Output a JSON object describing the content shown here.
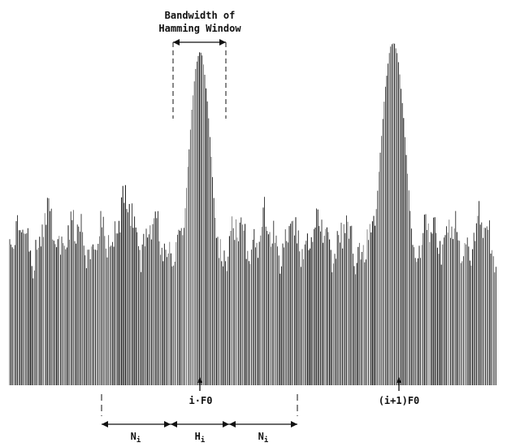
{
  "window_caption": {
    "line1": "Bandwidth of",
    "line2": "Hamming Window"
  },
  "harmonic_markers": [
    {
      "text": "i·F0"
    },
    {
      "text": "(i+1)F0"
    }
  ],
  "band_labels": [
    {
      "main": "N",
      "sub": "i"
    },
    {
      "main": "H",
      "sub": "i"
    },
    {
      "main": "N",
      "sub": "i"
    }
  ],
  "colors": {
    "ink": "#111111",
    "background": "#ffffff"
  }
}
